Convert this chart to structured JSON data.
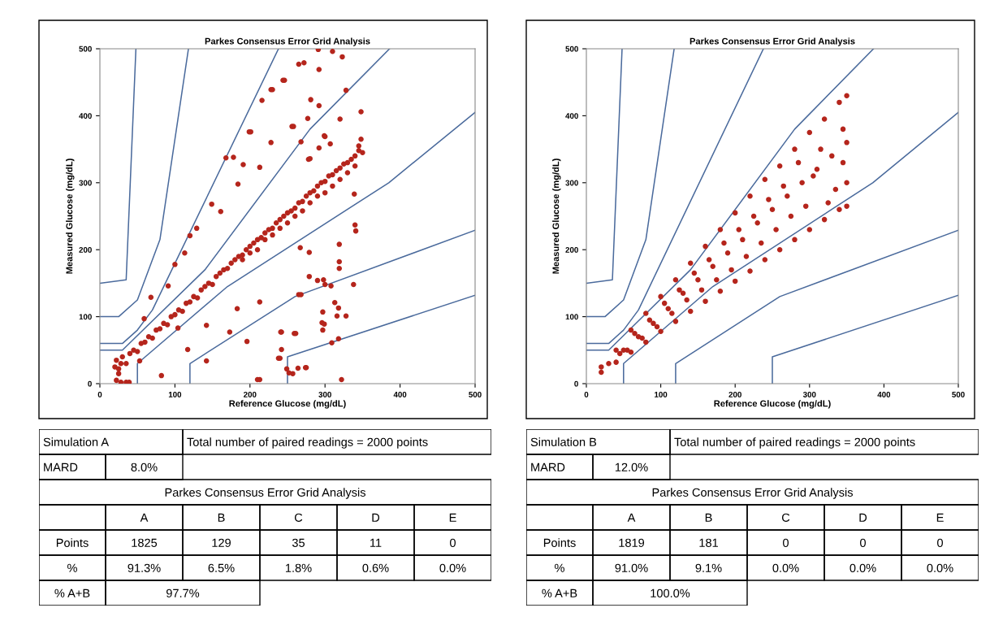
{
  "chart_data": [
    {
      "type": "scatter",
      "title": "Parkes Consensus Error Grid Analysis",
      "xlabel": "Reference Glucose (mg/dL)",
      "ylabel": "Measured Glucose (mg/dL)",
      "xlim": [
        0,
        500
      ],
      "ylim": [
        0,
        500
      ],
      "xticks": [
        0,
        100,
        200,
        300,
        400,
        500
      ],
      "yticks": [
        0,
        100,
        200,
        300,
        400,
        500
      ],
      "series": [
        {
          "type": "scatter",
          "marker": "circle",
          "color": "#b5251c",
          "x": [
            20,
            22,
            25,
            28,
            30,
            35,
            40,
            45,
            50,
            55,
            60,
            65,
            70,
            75,
            80,
            85,
            90,
            95,
            100,
            105,
            110,
            115,
            120,
            125,
            130,
            135,
            140,
            145,
            150,
            155,
            160,
            165,
            170,
            175,
            180,
            185,
            190,
            195,
            200,
            205,
            210,
            215,
            220,
            225,
            230,
            235,
            240,
            245,
            250,
            255,
            260,
            265,
            270,
            275,
            280,
            285,
            290,
            295,
            300,
            305,
            310,
            315,
            320,
            325,
            330,
            335,
            340,
            345,
            350,
            348,
            345,
            340,
            330,
            320,
            310,
            300,
            290,
            280,
            270,
            260,
            250,
            240,
            230,
            220,
            210,
            200,
            190,
            22,
            28,
            35,
            25,
            216,
            228,
            244,
            199,
            228,
            168,
            178,
            191,
            213,
            184,
            149,
            161,
            129,
            120,
            113,
            100,
            91,
            68,
            59,
            53,
            39,
            82,
            104,
            117,
            142,
            142,
            173,
            183,
            213,
            196,
            210,
            241,
            238,
            259,
            265,
            267,
            279,
            278,
            292,
            299,
            277,
            292,
            291,
            265,
            272,
            292,
            281,
            256,
            298,
            296,
            297,
            252,
            274,
            310,
            323,
            246,
            230,
            328,
            348,
            320,
            258,
            201,
            268,
            300,
            307,
            280,
            339,
            340,
            341,
            319,
            319,
            319,
            338,
            300,
            308,
            290,
            279,
            268,
            313,
            318,
            316,
            328,
            299,
            297,
            309,
            318,
            261,
            242,
            242,
            240,
            249,
            257,
            264,
            275,
            213,
            322
          ],
          "values": [
            25,
            35,
            15,
            30,
            40,
            30,
            45,
            50,
            48,
            60,
            62,
            70,
            68,
            80,
            82,
            90,
            88,
            100,
            103,
            110,
            108,
            120,
            122,
            130,
            128,
            140,
            145,
            150,
            148,
            160,
            165,
            170,
            172,
            180,
            185,
            190,
            192,
            200,
            205,
            210,
            215,
            218,
            225,
            230,
            232,
            240,
            245,
            250,
            255,
            258,
            262,
            270,
            272,
            280,
            285,
            288,
            295,
            300,
            302,
            310,
            312,
            318,
            322,
            328,
            330,
            335,
            340,
            348,
            345,
            365,
            355,
            325,
            315,
            305,
            295,
            285,
            280,
            270,
            258,
            250,
            240,
            232,
            222,
            215,
            200,
            195,
            185,
            5,
            2,
            2,
            22,
            423,
            439,
            453,
            376,
            360,
            337,
            338,
            327,
            323,
            298,
            268,
            257,
            232,
            221,
            195,
            178,
            146,
            129,
            97,
            34,
            2,
            12,
            83,
            51,
            34,
            87,
            77,
            112,
            122,
            63,
            6,
            77,
            38,
            75,
            133,
            203,
            196,
            335,
            352,
            370,
            396,
            415,
            499,
            477,
            479,
            469,
            424,
            384,
            155,
            91,
            107,
            16,
            24,
            496,
            488,
            453,
            439,
            438,
            406,
            395,
            384,
            376,
            361,
            369,
            358,
            336,
            283,
            237,
            228,
            208,
            182,
            172,
            148,
            148,
            146,
            154,
            160,
            133,
            121,
            113,
            101,
            101,
            89,
            80,
            61,
            67,
            75,
            77,
            51,
            38,
            22,
            15,
            23,
            24,
            6,
            6
          ]
        },
        {
          "type": "line",
          "color": "#4a6a9c",
          "x": [
            0,
            30,
            140,
            280,
            386
          ],
          "values": [
            50,
            50,
            170,
            380,
            500
          ]
        },
        {
          "type": "line",
          "color": "#4a6a9c",
          "x": [
            50,
            50,
            170,
            385,
            500
          ],
          "values": [
            0,
            30,
            145,
            300,
            405
          ]
        },
        {
          "type": "line",
          "color": "#4a6a9c",
          "x": [
            0,
            30,
            50,
            70,
            238
          ],
          "values": [
            60,
            60,
            80,
            110,
            500
          ]
        },
        {
          "type": "line",
          "color": "#4a6a9c",
          "x": [
            120,
            120,
            260,
            500
          ],
          "values": [
            0,
            30,
            130,
            229
          ]
        },
        {
          "type": "line",
          "color": "#4a6a9c",
          "x": [
            0,
            25,
            50,
            80,
            118
          ],
          "values": [
            100,
            100,
            125,
            215,
            500
          ]
        },
        {
          "type": "line",
          "color": "#4a6a9c",
          "x": [
            250,
            250,
            500
          ],
          "values": [
            0,
            40,
            132
          ]
        },
        {
          "type": "line",
          "color": "#4a6a9c",
          "x": [
            0,
            35,
            48
          ],
          "values": [
            150,
            155,
            500
          ]
        }
      ]
    },
    {
      "type": "scatter",
      "title": "Parkes Consensus Error Grid Analysis",
      "xlabel": "Reference Glucose (mg/dL)",
      "ylabel": "Measured Glucose (mg/dL)",
      "xlim": [
        0,
        500
      ],
      "ylim": [
        0,
        500
      ],
      "xticks": [
        0,
        100,
        200,
        300,
        400,
        500
      ],
      "yticks": [
        0,
        100,
        200,
        300,
        400,
        500
      ],
      "series": [
        {
          "type": "scatter",
          "marker": "circle",
          "color": "#b5251c",
          "x": [
            20,
            40,
            60,
            80,
            100,
            120,
            140,
            160,
            180,
            200,
            220,
            240,
            260,
            280,
            300,
            320,
            340,
            350,
            20,
            40,
            60,
            80,
            100,
            120,
            140,
            160,
            180,
            200,
            220,
            240,
            260,
            280,
            300,
            320,
            340,
            350,
            30,
            50,
            70,
            90,
            110,
            130,
            150,
            170,
            190,
            210,
            230,
            250,
            270,
            290,
            310,
            330,
            350,
            350,
            345,
            345,
            335,
            325,
            315,
            305,
            295,
            285,
            275,
            265,
            255,
            245,
            235,
            225,
            215,
            205,
            195,
            185,
            175,
            165,
            155,
            145,
            135,
            125,
            115,
            105,
            95,
            85,
            75,
            65,
            55,
            45
          ],
          "values": [
            25,
            50,
            80,
            105,
            130,
            155,
            180,
            205,
            230,
            255,
            280,
            305,
            325,
            350,
            375,
            395,
            420,
            430,
            17,
            32,
            47,
            62,
            78,
            93,
            108,
            123,
            138,
            153,
            168,
            185,
            200,
            215,
            230,
            245,
            260,
            265,
            30,
            50,
            70,
            90,
            112,
            135,
            155,
            175,
            195,
            215,
            240,
            260,
            280,
            300,
            320,
            340,
            360,
            300,
            380,
            330,
            290,
            270,
            350,
            310,
            265,
            330,
            250,
            295,
            230,
            275,
            210,
            250,
            190,
            230,
            170,
            210,
            155,
            185,
            140,
            165,
            125,
            140,
            105,
            120,
            85,
            95,
            68,
            75,
            50,
            45
          ]
        },
        {
          "type": "line",
          "color": "#4a6a9c",
          "x": [
            0,
            30,
            140,
            280,
            386
          ],
          "values": [
            50,
            50,
            170,
            380,
            500
          ]
        },
        {
          "type": "line",
          "color": "#4a6a9c",
          "x": [
            50,
            50,
            170,
            385,
            500
          ],
          "values": [
            0,
            30,
            145,
            300,
            405
          ]
        },
        {
          "type": "line",
          "color": "#4a6a9c",
          "x": [
            0,
            30,
            50,
            70,
            238
          ],
          "values": [
            60,
            60,
            80,
            110,
            500
          ]
        },
        {
          "type": "line",
          "color": "#4a6a9c",
          "x": [
            120,
            120,
            260,
            500
          ],
          "values": [
            0,
            30,
            130,
            229
          ]
        },
        {
          "type": "line",
          "color": "#4a6a9c",
          "x": [
            0,
            25,
            50,
            80,
            118
          ],
          "values": [
            100,
            100,
            125,
            215,
            500
          ]
        },
        {
          "type": "line",
          "color": "#4a6a9c",
          "x": [
            250,
            250,
            500
          ],
          "values": [
            0,
            40,
            132
          ]
        },
        {
          "type": "line",
          "color": "#4a6a9c",
          "x": [
            0,
            35,
            48
          ],
          "values": [
            150,
            155,
            500
          ]
        }
      ]
    },
    {
      "type": "other",
      "title": "Parkes Consensus Error Grid Analysis",
      "categories": [
        "A",
        "B",
        "C",
        "D",
        "E"
      ],
      "y_categories": [
        "Points",
        "%"
      ],
      "cell_labels": [
        [
          "1825",
          "129",
          "35",
          "11",
          "0"
        ],
        [
          "91.3%",
          "6.5%",
          "1.8%",
          "0.6%",
          "0.0%"
        ]
      ],
      "annotations": [
        "Simulation A",
        "Total number of paired readings = 2000 points",
        "MARD",
        "8.0%",
        "% A+B",
        "97.7%"
      ]
    },
    {
      "type": "other",
      "title": "Parkes Consensus Error Grid Analysis",
      "categories": [
        "A",
        "B",
        "C",
        "D",
        "E"
      ],
      "y_categories": [
        "Points",
        "%"
      ],
      "cell_labels": [
        [
          "1819",
          "181",
          "0",
          "0",
          "0"
        ],
        [
          "91.0%",
          "9.1%",
          "0.0%",
          "0.0%",
          "0.0%"
        ]
      ],
      "annotations": [
        "Simulation B",
        "Total number of paired readings = 2000 points",
        "MARD",
        "12.0%",
        "% A+B",
        "100.0%"
      ]
    }
  ]
}
